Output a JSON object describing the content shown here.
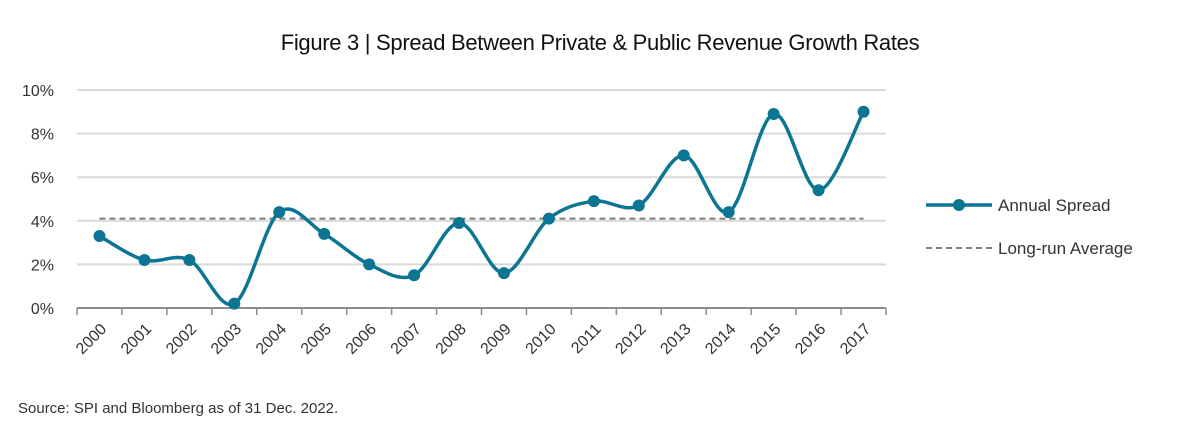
{
  "chart_data": {
    "type": "line",
    "title": "Figure 3 | Spread Between Private & Public Revenue Growth Rates",
    "xlabel": "",
    "ylabel": "",
    "categories": [
      "2000",
      "2001",
      "2002",
      "2003",
      "2004",
      "2005",
      "2006",
      "2007",
      "2008",
      "2009",
      "2010",
      "2011",
      "2012",
      "2013",
      "2014",
      "2015",
      "2016",
      "2017"
    ],
    "series": [
      {
        "name": "Annual Spread",
        "color": "#0b7593",
        "style": "smooth-line-markers",
        "values": [
          3.3,
          2.2,
          2.2,
          0.2,
          4.4,
          3.4,
          2.0,
          1.5,
          3.9,
          1.6,
          4.1,
          4.9,
          4.7,
          7.0,
          4.4,
          8.9,
          5.4,
          9.0
        ]
      },
      {
        "name": "Long-run Average",
        "color": "#7f7f7f",
        "style": "dashed",
        "value": 4.1
      }
    ],
    "ylim": [
      0,
      10
    ],
    "yticks": [
      0,
      2,
      4,
      6,
      8,
      10
    ],
    "ytick_labels": [
      "0%",
      "2%",
      "4%",
      "6%",
      "8%",
      "10%"
    ],
    "grid": true,
    "legend": "right"
  },
  "source": "Source: SPI and Bloomberg as of 31 Dec. 2022."
}
